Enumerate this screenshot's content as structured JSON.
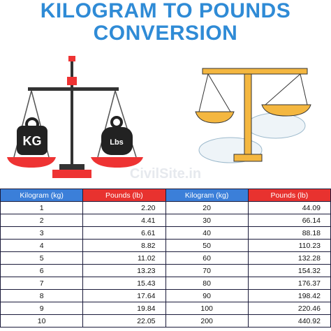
{
  "header": {
    "title_lines": [
      "KILOGRAM TO POUNDS",
      "CONVERSION"
    ]
  },
  "illustration": {
    "kg_label": "KG",
    "lbs_label": "Lbs",
    "watermark": "CivilSite.in"
  },
  "table": {
    "columns": [
      "Kilogram (kg)",
      "Pounds (lb)",
      "Kilogram (kg)",
      "Pounds (lb)"
    ],
    "rows": [
      [
        "1",
        "2.20",
        "20",
        "44.09"
      ],
      [
        "2",
        "4.41",
        "30",
        "66.14"
      ],
      [
        "3",
        "6.61",
        "40",
        "88.18"
      ],
      [
        "4",
        "8.82",
        "50",
        "110.23"
      ],
      [
        "5",
        "11.02",
        "60",
        "132.28"
      ],
      [
        "6",
        "13.23",
        "70",
        "154.32"
      ],
      [
        "7",
        "15.43",
        "80",
        "176.37"
      ],
      [
        "8",
        "17.64",
        "90",
        "198.42"
      ],
      [
        "9",
        "19.84",
        "100",
        "220.46"
      ],
      [
        "10",
        "22.05",
        "200",
        "440.92"
      ]
    ]
  }
}
